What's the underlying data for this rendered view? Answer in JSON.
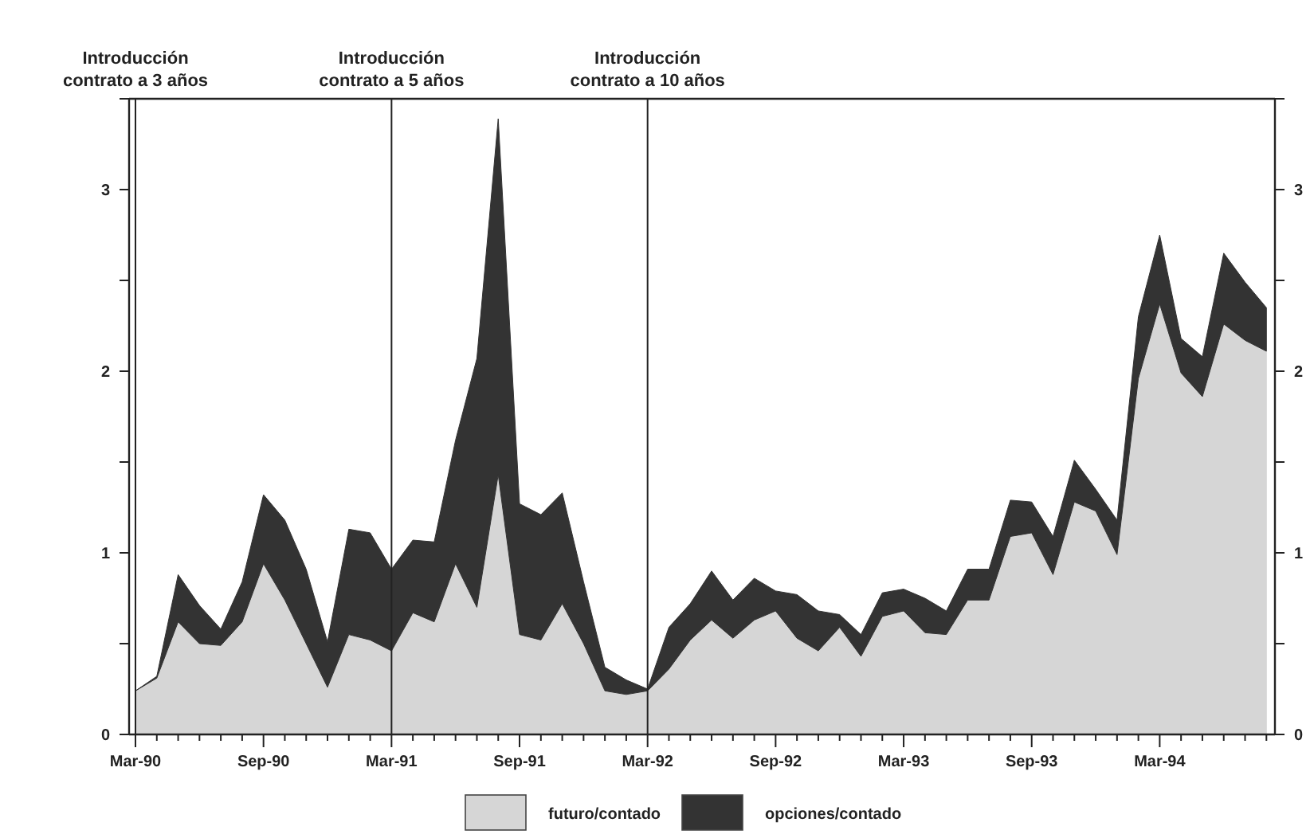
{
  "chart_data": {
    "type": "area",
    "stacked": true,
    "categories": [
      "Mar-90",
      null,
      null,
      null,
      null,
      null,
      "Sep-90",
      null,
      null,
      null,
      null,
      null,
      "Mar-91",
      null,
      null,
      null,
      null,
      null,
      "Sep-91",
      null,
      null,
      null,
      null,
      null,
      "Mar-92",
      null,
      null,
      null,
      null,
      null,
      "Sep-92",
      null,
      null,
      null,
      null,
      null,
      "Mar-93",
      null,
      null,
      null,
      null,
      null,
      "Sep-93",
      null,
      null,
      null,
      null,
      null,
      "Mar-94",
      null,
      null,
      null,
      null,
      null
    ],
    "series": [
      {
        "name": "futuro/contado",
        "color": "#d6d6d6",
        "values": [
          0.24,
          0.31,
          0.62,
          0.5,
          0.49,
          0.62,
          0.94,
          0.74,
          0.5,
          0.26,
          0.55,
          0.52,
          0.46,
          0.67,
          0.62,
          0.94,
          0.7,
          1.43,
          0.55,
          0.52,
          0.72,
          0.5,
          0.24,
          0.22,
          0.24,
          0.36,
          0.52,
          0.63,
          0.53,
          0.63,
          0.68,
          0.53,
          0.46,
          0.59,
          0.43,
          0.65,
          0.68,
          0.56,
          0.55,
          0.74,
          0.74,
          1.09,
          1.11,
          0.88,
          1.28,
          1.23,
          0.99,
          1.96,
          2.37,
          1.99,
          1.86,
          2.26,
          2.17,
          2.11
        ]
      },
      {
        "name": "opciones/contado",
        "color": "#333333",
        "values": [
          0.0,
          0.01,
          0.26,
          0.21,
          0.09,
          0.22,
          0.38,
          0.44,
          0.41,
          0.25,
          0.58,
          0.59,
          0.45,
          0.4,
          0.44,
          0.68,
          1.37,
          1.96,
          0.72,
          0.69,
          0.61,
          0.34,
          0.13,
          0.08,
          0.01,
          0.23,
          0.2,
          0.27,
          0.21,
          0.23,
          0.11,
          0.24,
          0.22,
          0.07,
          0.12,
          0.13,
          0.12,
          0.19,
          0.13,
          0.17,
          0.17,
          0.2,
          0.17,
          0.21,
          0.23,
          0.12,
          0.19,
          0.34,
          0.38,
          0.19,
          0.22,
          0.39,
          0.32,
          0.24
        ]
      }
    ],
    "ylim": [
      0,
      3.5
    ],
    "yticks": [
      0,
      {
        "value": 0.5,
        "label": null
      },
      1,
      {
        "value": 1.5,
        "label": null
      },
      2,
      {
        "value": 2.5,
        "label": null
      },
      3,
      {
        "value": 3.5,
        "label": null
      }
    ],
    "y2lim": [
      0,
      3.5
    ],
    "y2ticks": [
      0,
      {
        "value": 0.5,
        "label": null
      },
      1,
      {
        "value": 1.5,
        "label": null
      },
      2,
      {
        "value": 2.5,
        "label": null
      },
      3,
      {
        "value": 3.5,
        "label": null
      }
    ],
    "ref_lines": [
      {
        "axis": "x",
        "value": "Mar-90",
        "label": "Introducción\ncontrato a 3 años",
        "color": "#222222"
      },
      {
        "axis": "x",
        "value": "Mar-91",
        "label": "Introducción\ncontrato a 5 años",
        "color": "#222222"
      },
      {
        "axis": "x",
        "value": "Mar-92",
        "label": "Introducción\ncontrato a 10 años",
        "color": "#222222"
      }
    ],
    "grid": false,
    "legend": "bottom"
  }
}
